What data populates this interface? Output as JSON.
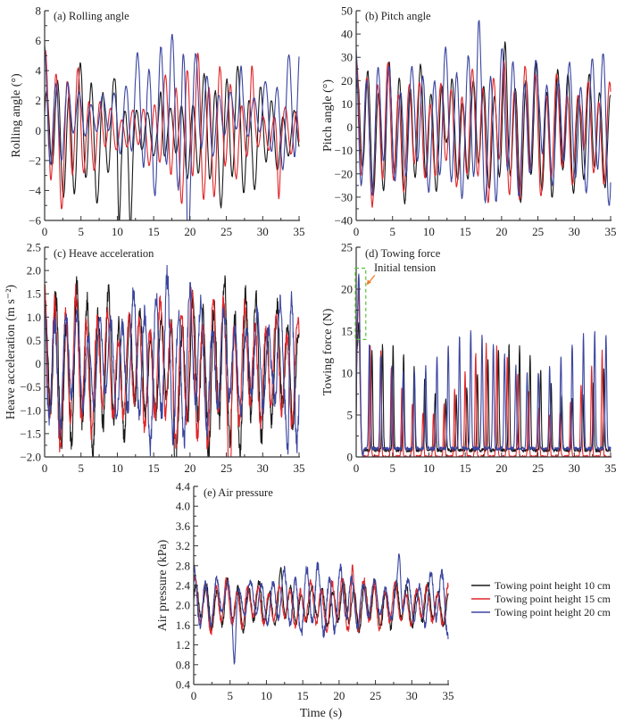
{
  "chart_data": [
    {
      "id": "a",
      "type": "line",
      "title": "(a) Rolling angle",
      "xlabel": "",
      "ylabel": "Rolling angle (°)",
      "xlim": [
        0,
        35
      ],
      "ylim": [
        -6,
        8
      ],
      "xticks": [
        0,
        5,
        10,
        15,
        20,
        25,
        30,
        35
      ],
      "yticks": [
        -6,
        -4,
        -2,
        0,
        2,
        4,
        6,
        8
      ],
      "ytick_labels": [
        "−6",
        "−4",
        "−2",
        "0",
        "2",
        "4",
        "6",
        "8"
      ],
      "series": [
        {
          "name": "Towing point height 10 cm",
          "period": 1.55,
          "mean": -0.3,
          "amplitude": [
            1.2,
            3.8
          ],
          "peaks": [
            {
              "x": 10.2,
              "y": -4.1
            },
            {
              "x": 11.8,
              "y": -4.3
            },
            {
              "x": 9.9,
              "y": 3.3
            },
            {
              "x": 16.0,
              "y": 3.6
            }
          ]
        },
        {
          "name": "Towing point height 15 cm",
          "period": 1.5,
          "mean": 0.0,
          "amplitude": [
            1.0,
            4.2
          ],
          "peaks": [
            {
              "x": 32.2,
              "y": -4.2
            },
            {
              "x": 28.5,
              "y": 4.0
            }
          ]
        },
        {
          "name": "Towing point height 20 cm",
          "period": 1.6,
          "mean": 1.0,
          "amplitude": [
            1.0,
            4.5
          ],
          "peaks": [
            {
              "x": 19.0,
              "y": 5.5
            },
            {
              "x": 19.7,
              "y": -5.1
            },
            {
              "x": 27.0,
              "y": 4.9
            }
          ]
        }
      ]
    },
    {
      "id": "b",
      "type": "line",
      "title": "(b) Pitch angle",
      "xlabel": "",
      "ylabel": "Pitch angle (°)",
      "xlim": [
        0,
        35
      ],
      "ylim": [
        -40,
        50
      ],
      "xticks": [
        0,
        5,
        10,
        15,
        20,
        25,
        30,
        35
      ],
      "yticks": [
        -40,
        -30,
        -20,
        -10,
        0,
        10,
        20,
        30,
        40,
        50
      ],
      "ytick_labels": [
        "−40",
        "−30",
        "−20",
        "−10",
        "0",
        "10",
        "20",
        "30",
        "40",
        "50"
      ],
      "series": [
        {
          "name": "Towing point height 10 cm",
          "period": 1.45,
          "mean": -2,
          "amplitude": [
            18,
            24
          ],
          "peaks": [
            {
              "x": 12.5,
              "y": 22
            },
            {
              "x": 20.5,
              "y": 25
            }
          ]
        },
        {
          "name": "Towing point height 15 cm",
          "period": 1.45,
          "mean": -2,
          "amplitude": [
            17,
            25
          ],
          "peaks": [
            {
              "x": 19.5,
              "y": 24
            },
            {
              "x": 31.0,
              "y": 26
            }
          ]
        },
        {
          "name": "Towing point height 20 cm",
          "period": 1.55,
          "mean": 1,
          "amplitude": [
            20,
            30
          ],
          "peaks": [
            {
              "x": 14.8,
              "y": 31
            },
            {
              "x": 16.8,
              "y": 31
            },
            {
              "x": 25.3,
              "y": 31
            }
          ]
        }
      ]
    },
    {
      "id": "c",
      "type": "line",
      "title": "(c) Heave acceleration",
      "xlabel": "",
      "ylabel": "Heave acceleration (m s⁻²)",
      "xlim": [
        0,
        35
      ],
      "ylim": [
        -2.0,
        2.5
      ],
      "xticks": [
        0,
        5,
        10,
        15,
        20,
        25,
        30,
        35
      ],
      "yticks": [
        -2.0,
        -1.5,
        -1.0,
        -0.5,
        0,
        0.5,
        1.0,
        1.5,
        2.0,
        2.5
      ],
      "ytick_labels": [
        "−2.0",
        "−1.5",
        "−1.0",
        "−0.5",
        "0",
        "0.5",
        "1.0",
        "1.5",
        "2.0",
        "2.5"
      ],
      "series": [
        {
          "name": "Towing point height 10 cm",
          "period": 1.45,
          "mean": -0.1,
          "amplitude": [
            0.9,
            1.5
          ],
          "peaks": [
            {
              "x": 17.9,
              "y": -1.7
            }
          ]
        },
        {
          "name": "Towing point height 15 cm",
          "period": 1.45,
          "mean": -0.1,
          "amplitude": [
            0.9,
            1.4
          ],
          "peaks": [
            {
              "x": 25.5,
              "y": -1.5
            }
          ]
        },
        {
          "name": "Towing point height 20 cm",
          "period": 1.55,
          "mean": 0.0,
          "amplitude": [
            0.8,
            1.5
          ],
          "peaks": [
            {
              "x": 31.5,
              "y": 1.65
            },
            {
              "x": 33.5,
              "y": -1.6
            }
          ]
        }
      ]
    },
    {
      "id": "d",
      "type": "line",
      "title": "(d) Towing force",
      "annotation": "Initial tension",
      "xlabel": "",
      "ylabel": "Towing force (N)",
      "xlim": [
        0,
        35
      ],
      "ylim": [
        0,
        25
      ],
      "xticks": [
        0,
        5,
        10,
        15,
        20,
        25,
        30,
        35
      ],
      "yticks": [
        0,
        5,
        10,
        15,
        20,
        25
      ],
      "ytick_labels": [
        "0",
        "5",
        "10",
        "15",
        "20",
        "25"
      ],
      "initial_tension_box": {
        "x": [
          0,
          1.2
        ],
        "y": [
          14,
          22.5
        ]
      },
      "series": [
        {
          "name": "Towing point height 10 cm",
          "period": 1.45,
          "base": 0.8,
          "peak_range": [
            7,
            13.5
          ],
          "initial_peak": 16
        },
        {
          "name": "Towing point height 15 cm",
          "period": 1.45,
          "base": 0.0,
          "peak_range": [
            5,
            13.5
          ],
          "initial_peak": 20
        },
        {
          "name": "Towing point height 20 cm",
          "period": 1.55,
          "base": 1.0,
          "peak_range": [
            10,
            15
          ],
          "initial_peak": 21.8
        }
      ]
    },
    {
      "id": "e",
      "type": "line",
      "title": "(e) Air pressure",
      "xlabel": "Time (s)",
      "ylabel": "Air pressure (kPa)",
      "xlim": [
        0,
        35
      ],
      "ylim": [
        0.4,
        4.4
      ],
      "xticks": [
        0,
        5,
        10,
        15,
        20,
        25,
        30,
        35
      ],
      "yticks": [
        0.4,
        0.8,
        1.2,
        1.6,
        2.0,
        2.4,
        2.8,
        3.2,
        3.6,
        4.0,
        4.4
      ],
      "ytick_labels": [
        "0.4",
        "0.8",
        "1.2",
        "1.6",
        "2.0",
        "2.4",
        "2.8",
        "3.2",
        "3.6",
        "4.0",
        "4.4"
      ],
      "series": [
        {
          "name": "Towing point height 10 cm",
          "period": 1.45,
          "mean": 2.0,
          "amplitude": [
            0.3,
            0.4
          ],
          "peaks": [
            {
              "x": 12.0,
              "y": 2.75
            }
          ]
        },
        {
          "name": "Towing point height 15 cm",
          "period": 1.45,
          "mean": 2.0,
          "amplitude": [
            0.3,
            0.45
          ],
          "peaks": [
            {
              "x": 21.8,
              "y": 2.85
            }
          ]
        },
        {
          "name": "Towing point height 20 cm",
          "period": 1.55,
          "mean": 2.1,
          "amplitude": [
            0.3,
            0.6
          ],
          "peaks": [
            {
              "x": 28.3,
              "y": 3.3
            },
            {
              "x": 5.6,
              "y": 1.15
            }
          ]
        }
      ]
    }
  ],
  "legend": {
    "placement": "right of panel (e)",
    "items": [
      {
        "label": "Towing point height 10 cm",
        "color": "#1a1a1a"
      },
      {
        "label": "Towing point height 15 cm",
        "color": "#e0262a"
      },
      {
        "label": "Towing point height 20 cm",
        "color": "#3a45a0"
      }
    ]
  },
  "colors": {
    "series": [
      "#1a1a1a",
      "#e0262a",
      "#3a45a0"
    ],
    "axis": "#333333",
    "annotation_box": "#5cc23c",
    "annotation_arrow": "#f07a2a"
  }
}
